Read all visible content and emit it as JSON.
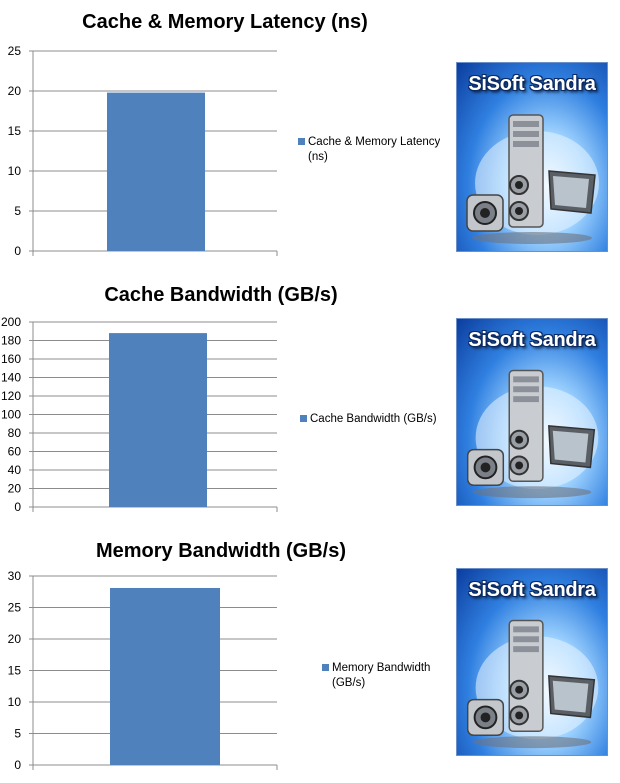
{
  "chart_data": [
    {
      "type": "bar",
      "title": "Cache & Memory Latency (ns)",
      "categories": [
        ""
      ],
      "series": [
        {
          "name": "Cache & Memory Latency (ns)",
          "values": [
            19.8
          ]
        }
      ],
      "ylim": [
        0,
        25
      ],
      "yticks": [
        0,
        5,
        10,
        15,
        20,
        25
      ],
      "grid": true,
      "legend_position": "right",
      "color": "#4f81bd"
    },
    {
      "type": "bar",
      "title": "Cache Bandwidth (GB/s)",
      "categories": [
        ""
      ],
      "series": [
        {
          "name": "Cache Bandwidth (GB/s)",
          "values": [
            188
          ]
        }
      ],
      "ylim": [
        0,
        200
      ],
      "yticks": [
        0,
        20,
        40,
        60,
        80,
        100,
        120,
        140,
        160,
        180,
        200
      ],
      "grid": true,
      "legend_position": "right",
      "color": "#4f81bd"
    },
    {
      "type": "bar",
      "title": "Memory Bandwidth (GB/s)",
      "categories": [
        ""
      ],
      "series": [
        {
          "name": "Memory Bandwidth (GB/s)",
          "values": [
            28.1
          ]
        }
      ],
      "ylim": [
        0,
        30
      ],
      "yticks": [
        0,
        5,
        10,
        15,
        20,
        25,
        30
      ],
      "grid": true,
      "legend_position": "right",
      "color": "#4f81bd"
    }
  ],
  "logos": [
    {
      "text": "SiSoft Sandra",
      "icon": "computer-tower-icon"
    },
    {
      "text": "SiSoft Sandra",
      "icon": "computer-tower-icon"
    },
    {
      "text": "SiSoft Sandra",
      "icon": "computer-tower-icon"
    }
  ]
}
